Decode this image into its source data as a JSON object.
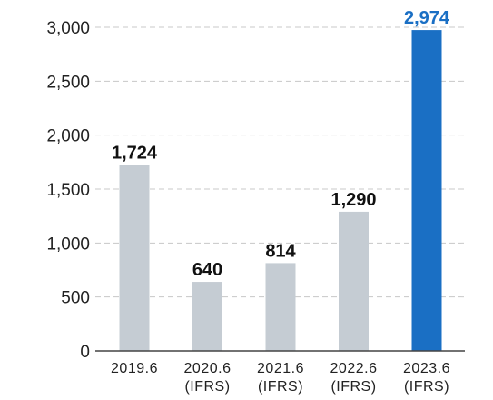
{
  "chart_data": {
    "type": "bar",
    "title": "",
    "xlabel": "",
    "ylabel": "",
    "ylim": [
      0,
      3000
    ],
    "yticks": [
      0,
      500,
      1000,
      1500,
      2000,
      2500,
      3000
    ],
    "ytick_labels": [
      "0",
      "500",
      "1,000",
      "1,500",
      "2,000",
      "2,500",
      "3,000"
    ],
    "grid": true,
    "categories": [
      {
        "line1": "2019.6",
        "line2": ""
      },
      {
        "line1": "2020.6",
        "line2": "(IFRS)"
      },
      {
        "line1": "2021.6",
        "line2": "(IFRS)"
      },
      {
        "line1": "2022.6",
        "line2": "(IFRS)"
      },
      {
        "line1": "2023.6",
        "line2": "(IFRS)"
      }
    ],
    "values": [
      1724,
      640,
      814,
      1290,
      2974
    ],
    "value_labels": [
      "1,724",
      "640",
      "814",
      "1,290",
      "2,974"
    ],
    "highlight_index": 4,
    "colors": {
      "bar": "#c5ccd3",
      "highlight_bar": "#1a6fc4",
      "highlight_label": "#1a6fc4"
    }
  }
}
